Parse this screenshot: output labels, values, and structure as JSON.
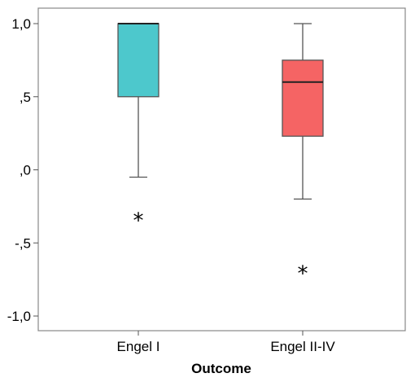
{
  "chart_data": {
    "type": "box",
    "title": "",
    "xlabel": "Outcome",
    "ylabel": "",
    "ylim": [
      -1.1,
      1.1
    ],
    "y_ticks": [
      "1,0",
      ",5",
      ",0",
      "-,5",
      "-1,0"
    ],
    "y_tick_values": [
      1.0,
      0.5,
      0.0,
      -0.5,
      -1.0
    ],
    "categories": [
      "Engel I",
      "Engel II-IV"
    ],
    "boxes": [
      {
        "category": "Engel I",
        "color": "#4dc8cc",
        "whisker_low": -0.05,
        "q1": 0.5,
        "median": 1.0,
        "q3": 1.0,
        "whisker_high": 1.0,
        "outliers": [
          -0.33
        ]
      },
      {
        "category": "Engel II-IV",
        "color": "#f56464",
        "whisker_low": -0.2,
        "q1": 0.23,
        "median": 0.6,
        "q3": 0.75,
        "whisker_high": 1.0,
        "outliers": [
          -0.69
        ]
      }
    ],
    "outlier_marker": "*",
    "grid": false,
    "legend": "none"
  }
}
